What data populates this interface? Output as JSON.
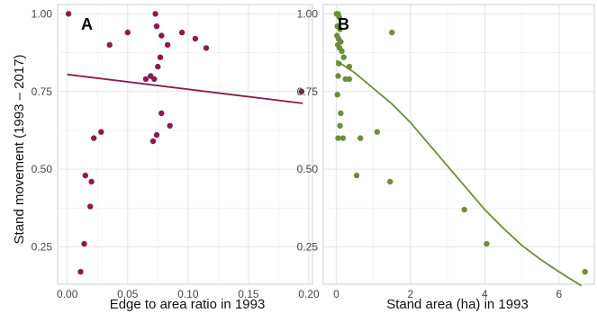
{
  "chart_data": [
    {
      "type": "scatter",
      "panel_label": "A",
      "xlabel": "Edge to area ratio in 1993",
      "ylabel": "Stand movement (1993 – 2017)",
      "xlim": [
        -0.008,
        0.203
      ],
      "ylim": [
        0.13,
        1.03
      ],
      "xticks": [
        "0.00",
        "0.05",
        "0.10",
        "0.15",
        "0.20"
      ],
      "yticks": [
        "0.25",
        "0.50",
        "0.75",
        "1.00"
      ],
      "xtick_values": [
        0.0,
        0.05,
        0.1,
        0.15,
        0.2
      ],
      "ytick_values": [
        0.25,
        0.5,
        0.75,
        1.0
      ],
      "grid": true,
      "point_color": "#8b1a4f",
      "line_color": "#8b1a4f",
      "points": [
        {
          "x": 0.001,
          "y": 1.0
        },
        {
          "x": 0.011,
          "y": 0.17
        },
        {
          "x": 0.014,
          "y": 0.26
        },
        {
          "x": 0.015,
          "y": 0.48
        },
        {
          "x": 0.019,
          "y": 0.38
        },
        {
          "x": 0.02,
          "y": 0.46
        },
        {
          "x": 0.022,
          "y": 0.6
        },
        {
          "x": 0.028,
          "y": 0.62
        },
        {
          "x": 0.035,
          "y": 0.9
        },
        {
          "x": 0.05,
          "y": 0.94
        },
        {
          "x": 0.065,
          "y": 0.79
        },
        {
          "x": 0.069,
          "y": 0.8
        },
        {
          "x": 0.071,
          "y": 0.59
        },
        {
          "x": 0.072,
          "y": 0.79
        },
        {
          "x": 0.073,
          "y": 1.0
        },
        {
          "x": 0.074,
          "y": 0.96
        },
        {
          "x": 0.075,
          "y": 0.83
        },
        {
          "x": 0.074,
          "y": 0.61
        },
        {
          "x": 0.077,
          "y": 0.86
        },
        {
          "x": 0.078,
          "y": 0.93
        },
        {
          "x": 0.078,
          "y": 0.68
        },
        {
          "x": 0.083,
          "y": 0.9
        },
        {
          "x": 0.085,
          "y": 0.64
        },
        {
          "x": 0.095,
          "y": 0.94
        },
        {
          "x": 0.106,
          "y": 0.92
        },
        {
          "x": 0.115,
          "y": 0.89
        },
        {
          "x": 0.194,
          "y": 0.75
        }
      ],
      "trend": [
        {
          "x": 0.0,
          "y": 0.805
        },
        {
          "x": 0.195,
          "y": 0.712
        }
      ]
    },
    {
      "type": "scatter",
      "panel_label": "B",
      "xlabel": "Stand area (ha) in 1993",
      "ylabel": "",
      "xlim": [
        -0.35,
        6.95
      ],
      "ylim": [
        0.13,
        1.03
      ],
      "xticks": [
        "0",
        "2",
        "4",
        "6"
      ],
      "yticks": [
        "0.25",
        "0.50",
        "0.75",
        "1.00"
      ],
      "xtick_values": [
        0,
        2,
        4,
        6
      ],
      "ytick_values": [
        0.25,
        0.5,
        0.75,
        1.0
      ],
      "grid": true,
      "point_color": "#6b8e3a",
      "line_color": "#6b8e3a",
      "points": [
        {
          "x": 0.01,
          "y": 1.0
        },
        {
          "x": 0.05,
          "y": 1.0
        },
        {
          "x": 0.08,
          "y": 0.99
        },
        {
          "x": 0.03,
          "y": 0.96
        },
        {
          "x": 0.1,
          "y": 0.95
        },
        {
          "x": 0.02,
          "y": 0.93
        },
        {
          "x": 0.06,
          "y": 0.92
        },
        {
          "x": 0.12,
          "y": 0.91
        },
        {
          "x": 0.04,
          "y": 0.9
        },
        {
          "x": 0.09,
          "y": 0.89
        },
        {
          "x": 0.15,
          "y": 0.88
        },
        {
          "x": 0.2,
          "y": 0.86
        },
        {
          "x": 0.07,
          "y": 0.84
        },
        {
          "x": 0.35,
          "y": 0.83
        },
        {
          "x": 0.05,
          "y": 0.8
        },
        {
          "x": 0.25,
          "y": 0.79
        },
        {
          "x": 0.35,
          "y": 0.79
        },
        {
          "x": 0.03,
          "y": 0.74
        },
        {
          "x": 0.12,
          "y": 0.68
        },
        {
          "x": 0.1,
          "y": 0.64
        },
        {
          "x": 0.05,
          "y": 0.6
        },
        {
          "x": 0.18,
          "y": 0.6
        },
        {
          "x": 0.65,
          "y": 0.6
        },
        {
          "x": 1.1,
          "y": 0.62
        },
        {
          "x": 0.55,
          "y": 0.48
        },
        {
          "x": 1.45,
          "y": 0.46
        },
        {
          "x": 1.5,
          "y": 0.94
        },
        {
          "x": 3.45,
          "y": 0.37
        },
        {
          "x": 4.05,
          "y": 0.26
        },
        {
          "x": 6.7,
          "y": 0.17
        }
      ],
      "trend": [
        {
          "x": 0.0,
          "y": 0.85
        },
        {
          "x": 0.5,
          "y": 0.81
        },
        {
          "x": 1.0,
          "y": 0.76
        },
        {
          "x": 1.5,
          "y": 0.71
        },
        {
          "x": 2.0,
          "y": 0.65
        },
        {
          "x": 2.5,
          "y": 0.58
        },
        {
          "x": 3.0,
          "y": 0.51
        },
        {
          "x": 3.5,
          "y": 0.44
        },
        {
          "x": 4.0,
          "y": 0.37
        },
        {
          "x": 4.5,
          "y": 0.31
        },
        {
          "x": 5.0,
          "y": 0.255
        },
        {
          "x": 5.5,
          "y": 0.21
        },
        {
          "x": 6.0,
          "y": 0.17
        },
        {
          "x": 6.6,
          "y": 0.125
        }
      ]
    }
  ]
}
